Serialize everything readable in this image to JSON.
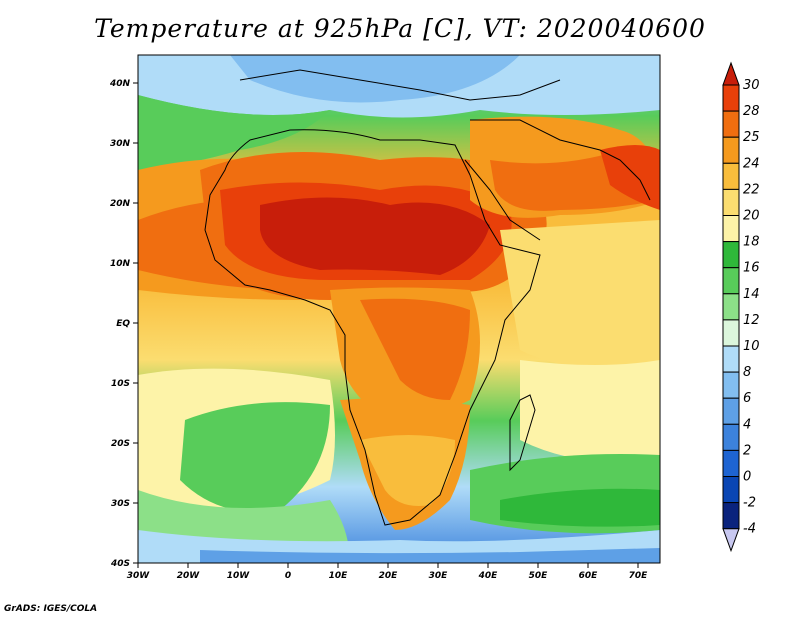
{
  "title": "Temperature at 925hPa [C], VT: 2020040600",
  "credit": "GrADS: IGES/COLA",
  "map": {
    "x_ticks": [
      "30W",
      "20W",
      "10W",
      "0",
      "10E",
      "20E",
      "30E",
      "40E",
      "50E",
      "60E",
      "70E"
    ],
    "y_ticks": [
      "40N",
      "30N",
      "20N",
      "10N",
      "EQ",
      "10S",
      "20S",
      "30S",
      "40S"
    ]
  },
  "colorbar": {
    "labels": [
      "30",
      "28",
      "25",
      "24",
      "22",
      "20",
      "18",
      "16",
      "14",
      "12",
      "10",
      "8",
      "6",
      "4",
      "2",
      "0",
      "-2",
      "-4"
    ],
    "colors": [
      "#c81e0a",
      "#e8400a",
      "#f06e10",
      "#f59a1e",
      "#f9bd3c",
      "#fbdd70",
      "#fdf3a8",
      "#2fb83a",
      "#58cc5a",
      "#8ce088",
      "#dcf6dc",
      "#b0dcf8",
      "#82bef0",
      "#5ea0e6",
      "#3c82dc",
      "#1e64d2",
      "#0a46b4",
      "#0a237d",
      "#c8c8f0"
    ]
  }
}
